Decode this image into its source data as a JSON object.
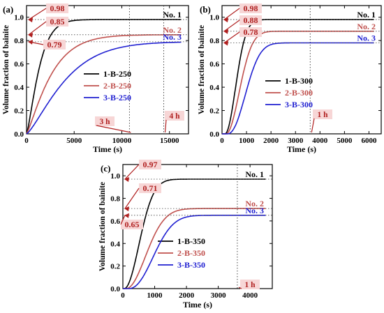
{
  "chart_data": [
    {
      "panel_label": "(a)",
      "type": "line",
      "xlabel": "Time (s)",
      "ylabel": "Volume fraction of bainite",
      "xlim": [
        0,
        17000
      ],
      "ylim": [
        0,
        1.1
      ],
      "xticks": [
        0,
        5000,
        10000,
        15000
      ],
      "yticks": [
        0.0,
        0.2,
        0.4,
        0.6,
        0.8,
        1.0
      ],
      "legend_position": "center-right",
      "series": [
        {
          "name": "1-B-250",
          "color": "#000000",
          "final": 0.98,
          "tau": 1500,
          "n": 1.3,
          "t0": 0,
          "no_label": "No. 1",
          "ann_label": "0.98"
        },
        {
          "name": "2-B-250",
          "color": "#c0504d",
          "final": 0.85,
          "tau": 2800,
          "n": 1.2,
          "t0": 0,
          "no_label": "No. 2",
          "ann_label": "0.85"
        },
        {
          "name": "3-B-250",
          "color": "#1f1fd1",
          "final": 0.79,
          "tau": 4500,
          "n": 1.3,
          "t0": 0,
          "no_label": "No. 3",
          "ann_label": "0.79"
        }
      ],
      "time_markers": [
        {
          "x": 10800,
          "label": "3 h"
        },
        {
          "x": 14400,
          "label": "4 h"
        }
      ]
    },
    {
      "panel_label": "(b)",
      "type": "line",
      "xlabel": "Time (s)",
      "ylabel": "Volume fraction of bainite",
      "xlim": [
        0,
        6500
      ],
      "ylim": [
        0,
        1.1
      ],
      "xticks": [
        0,
        1000,
        2000,
        3000,
        4000,
        5000,
        6000
      ],
      "yticks": [
        0.0,
        0.2,
        0.4,
        0.6,
        0.8,
        1.0
      ],
      "legend_position": "center-right",
      "series": [
        {
          "name": "1-B-300",
          "color": "#000000",
          "final": 0.98,
          "tau": 600,
          "n": 2.0,
          "t0": 120,
          "no_label": "No. 1",
          "ann_label": "0.98"
        },
        {
          "name": "2-B-300",
          "color": "#c0504d",
          "final": 0.88,
          "tau": 750,
          "n": 2.0,
          "t0": 160,
          "no_label": "No. 2",
          "ann_label": "0.88"
        },
        {
          "name": "3-B-300",
          "color": "#1f1fd1",
          "final": 0.78,
          "tau": 950,
          "n": 2.2,
          "t0": 220,
          "no_label": "No. 3",
          "ann_label": "0.78"
        }
      ],
      "time_markers": [
        {
          "x": 3600,
          "label": "1 h"
        }
      ]
    },
    {
      "panel_label": "(c)",
      "type": "line",
      "xlabel": "Time (s)",
      "ylabel": "Volume fraction of bainite",
      "xlim": [
        0,
        4700
      ],
      "ylim": [
        0,
        1.1
      ],
      "xticks": [
        0,
        1000,
        2000,
        3000,
        4000
      ],
      "yticks": [
        0.0,
        0.2,
        0.4,
        0.6,
        0.8,
        1.0
      ],
      "legend_position": "center-right",
      "series": [
        {
          "name": "1-B-350",
          "color": "#000000",
          "final": 0.97,
          "tau": 650,
          "n": 2.0,
          "t0": 40,
          "no_label": "No. 1",
          "ann_label": "0.97"
        },
        {
          "name": "2-B-350",
          "color": "#c0504d",
          "final": 0.71,
          "tau": 850,
          "n": 2.0,
          "t0": 100,
          "no_label": "No. 2",
          "ann_label": "0.71"
        },
        {
          "name": "3-B-350",
          "color": "#1f1fd1",
          "final": 0.65,
          "tau": 1000,
          "n": 2.2,
          "t0": 180,
          "no_label": "No. 3",
          "ann_label": "0.65"
        }
      ],
      "time_markers": [
        {
          "x": 3600,
          "label": "1 h"
        }
      ]
    }
  ]
}
